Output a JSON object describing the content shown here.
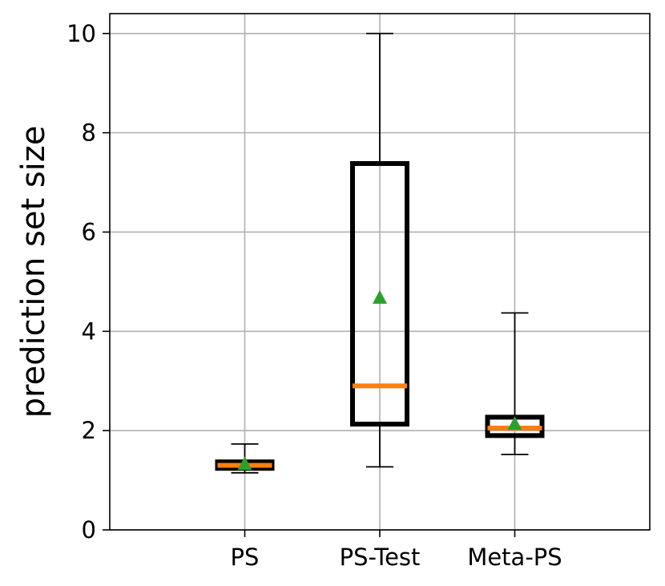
{
  "chart_data": {
    "type": "box",
    "title": "",
    "xlabel": "",
    "ylabel": "prediction set size",
    "ylim": [
      0,
      10.4
    ],
    "yticks": [
      0,
      2,
      4,
      6,
      8,
      10
    ],
    "ytick_labels": [
      "0",
      "2",
      "4",
      "6",
      "8",
      "10"
    ],
    "grid": true,
    "categories": [
      "PS",
      "PS-Test",
      "Meta-PS"
    ],
    "boxes": [
      {
        "category": "PS",
        "whisker_low": 1.15,
        "q1": 1.24,
        "median": 1.3,
        "q3": 1.37,
        "whisker_high": 1.73,
        "mean": 1.32
      },
      {
        "category": "PS-Test",
        "whisker_low": 1.27,
        "q1": 2.13,
        "median": 2.9,
        "q3": 7.38,
        "whisker_high": 10.0,
        "mean": 4.67
      },
      {
        "category": "Meta-PS",
        "whisker_low": 1.52,
        "q1": 1.9,
        "median": 2.05,
        "q3": 2.27,
        "whisker_high": 4.37,
        "mean": 2.13
      }
    ],
    "colors": {
      "box": "#000000",
      "median": "#ff7f0e",
      "mean": "#2ca02c",
      "grid": "#b0b0b0"
    }
  }
}
